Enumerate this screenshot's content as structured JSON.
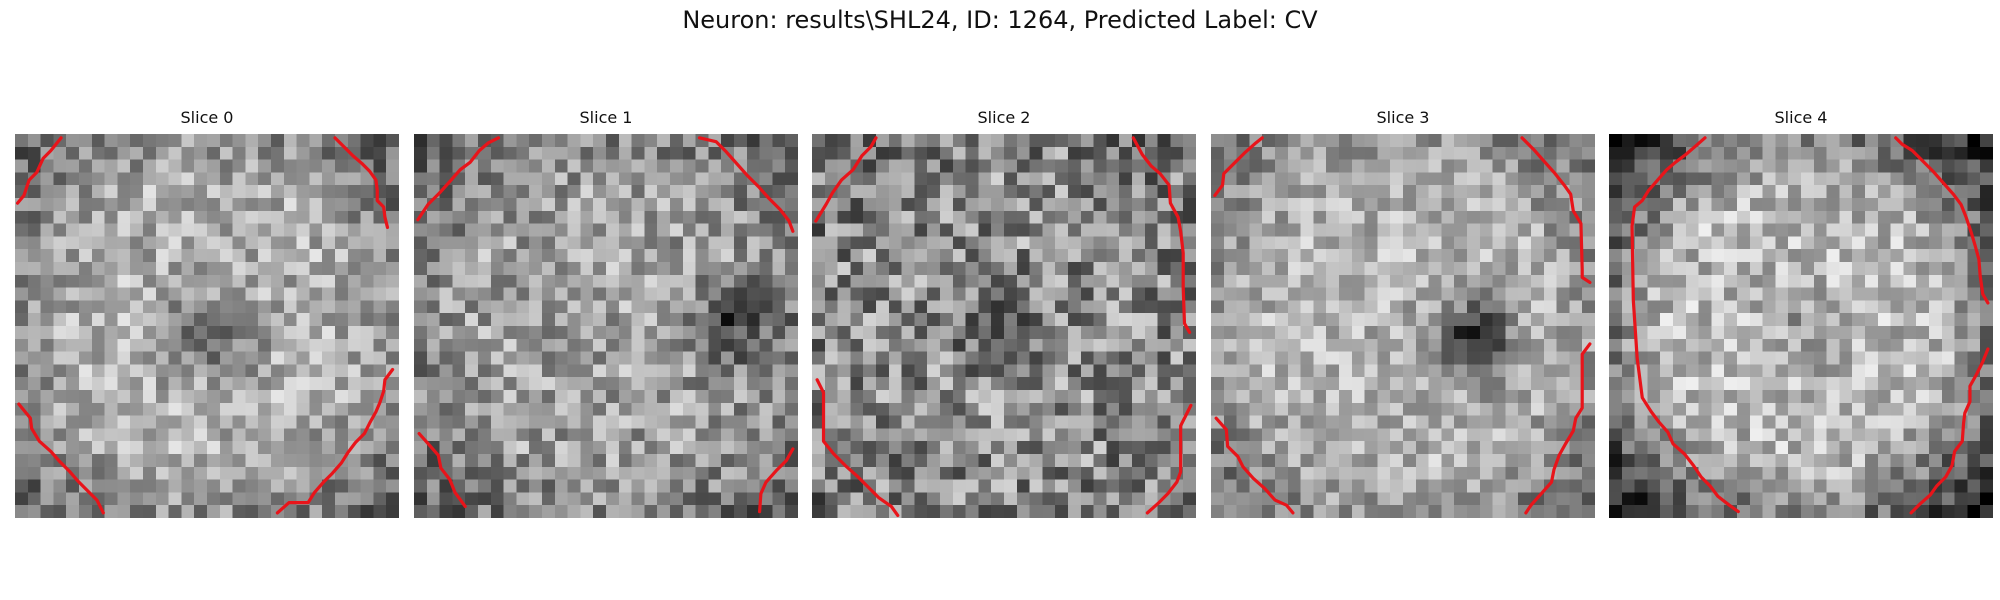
{
  "figure": {
    "title": "Neuron: results\\SHL24, ID: 1264, Predicted Label: CV"
  },
  "slices": [
    {
      "title": "Slice 0"
    },
    {
      "title": "Slice 1"
    },
    {
      "title": "Slice 2"
    },
    {
      "title": "Slice 3"
    },
    {
      "title": "Slice 4"
    }
  ],
  "colors": {
    "contour": "#e8141a",
    "background": "#ffffff"
  }
}
